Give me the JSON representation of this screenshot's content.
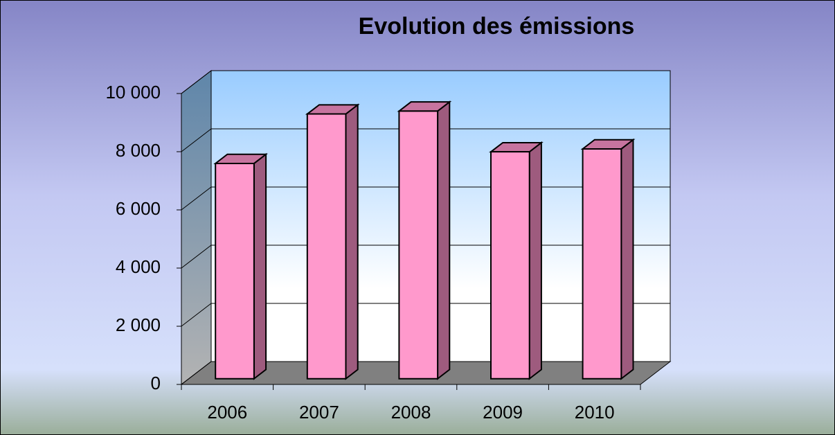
{
  "chart_data": {
    "type": "bar3d",
    "title": "Evolution des émissions",
    "categories": [
      "2006",
      "2007",
      "2008",
      "2009",
      "2010"
    ],
    "values": [
      7400,
      9100,
      9200,
      7800,
      7900
    ],
    "color": "#ff99cc",
    "ylim": [
      0,
      10000
    ],
    "yticks": [
      0,
      {
        "value": 2000,
        "label": "2 000"
      },
      {
        "value": 4000,
        "label": "4 000"
      },
      {
        "value": 6000,
        "label": "6 000"
      },
      {
        "value": 8000,
        "label": "8 000"
      },
      {
        "value": 10000,
        "label": "10 000"
      }
    ],
    "grid": true
  }
}
